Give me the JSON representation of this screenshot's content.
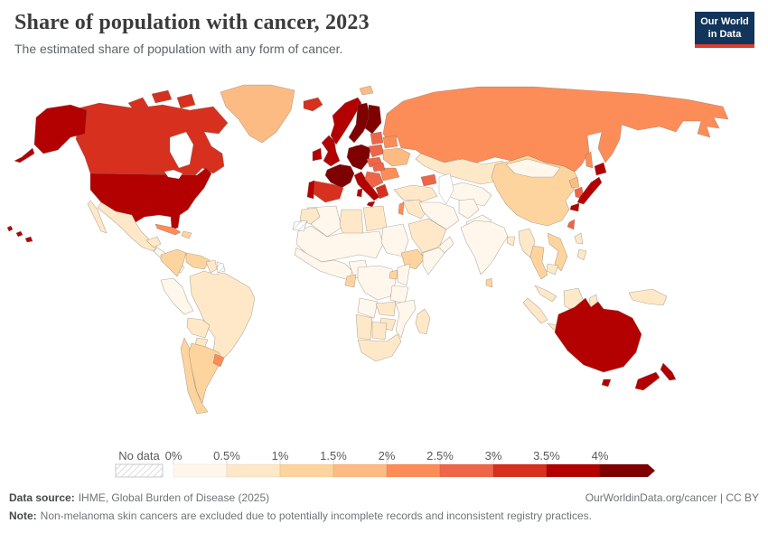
{
  "header": {
    "title": "Share of population with cancer, 2023",
    "subtitle": "The estimated share of population with any form of cancer.",
    "logo_line1": "Our World",
    "logo_line2": "in Data"
  },
  "footer": {
    "source_label": "Data source:",
    "source_text": "IHME, Global Burden of Disease (2025)",
    "credit": "OurWorldinData.org/cancer | CC BY",
    "note_label": "Note:",
    "note_text": "Non-melanoma skin cancers are excluded due to potentially incomplete records and inconsistent registry practices."
  },
  "colors": {
    "logo_bg": "#12355b",
    "logo_accent": "#dc3c2e",
    "country_border": "rgba(110,100,90,0.5)",
    "no_data_hatch": "#cfcfcf",
    "legend_text": "#5b5b5b",
    "tick": "#d9d9d9"
  },
  "chart_data": {
    "type": "choropleth_map",
    "title": "Share of population with cancer, 2023",
    "year": "2023",
    "metric": "Estimated share of population with any form of cancer",
    "unit": "%",
    "legend": {
      "no_data_label": "No data",
      "tick_labels": [
        "0%",
        "0.5%",
        "1%",
        "1.5%",
        "2%",
        "2.5%",
        "3%",
        "3.5%",
        "4%"
      ],
      "bins": [
        {
          "label": "0-0.5%",
          "color": "#fff7ec"
        },
        {
          "label": "0.5-1%",
          "color": "#fee8c8"
        },
        {
          "label": "1-1.5%",
          "color": "#fdd49e"
        },
        {
          "label": "1.5-2%",
          "color": "#fdbb84"
        },
        {
          "label": "2-2.5%",
          "color": "#fc8d59"
        },
        {
          "label": "2.5-3%",
          "color": "#ef6548"
        },
        {
          "label": "3-3.5%",
          "color": "#d7301f"
        },
        {
          "label": "3.5-4%",
          "color": "#b30000"
        },
        {
          "label": "4%+",
          "color": "#7f0000",
          "arrow": true
        }
      ]
    },
    "regions": [
      {
        "id": "russia",
        "name": "Russia",
        "bin": "2-2.5%"
      },
      {
        "id": "canada",
        "name": "Canada",
        "bin": "3-3.5%"
      },
      {
        "id": "usa",
        "name": "United States",
        "bin": "3.5-4%"
      },
      {
        "id": "greenland",
        "name": "Greenland",
        "bin": "1.5-2%"
      },
      {
        "id": "mexico",
        "name": "Mexico",
        "bin": "0.5-1%"
      },
      {
        "id": "central_america",
        "name": "Central America",
        "bin": "0-0.5%"
      },
      {
        "id": "cuba",
        "name": "Cuba",
        "bin": "2-2.5%"
      },
      {
        "id": "hispaniola",
        "name": "Dominican Republic & Haiti",
        "bin": "1-1.5%"
      },
      {
        "id": "colombia",
        "name": "Colombia",
        "bin": "1-1.5%"
      },
      {
        "id": "venezuela",
        "name": "Venezuela",
        "bin": "1-1.5%"
      },
      {
        "id": "guyana_suriname",
        "name": "Guyana & Suriname",
        "bin": "0.5-1%"
      },
      {
        "id": "french_guiana",
        "name": "French Guiana",
        "bin": "No data"
      },
      {
        "id": "brazil",
        "name": "Brazil",
        "bin": "0.5-1%"
      },
      {
        "id": "peru",
        "name": "Peru",
        "bin": "0-0.5%"
      },
      {
        "id": "bolivia",
        "name": "Bolivia",
        "bin": "0.5-1%"
      },
      {
        "id": "paraguay",
        "name": "Paraguay",
        "bin": "0.5-1%"
      },
      {
        "id": "chile",
        "name": "Chile",
        "bin": "1-1.5%"
      },
      {
        "id": "argentina",
        "name": "Argentina",
        "bin": "1-1.5%"
      },
      {
        "id": "uruguay",
        "name": "Uruguay",
        "bin": "2-2.5%"
      },
      {
        "id": "iceland",
        "name": "Iceland",
        "bin": "3-3.5%"
      },
      {
        "id": "norway",
        "name": "Norway",
        "bin": "3.5-4%"
      },
      {
        "id": "sweden",
        "name": "Sweden",
        "bin": "4%+"
      },
      {
        "id": "finland",
        "name": "Finland",
        "bin": "4%+"
      },
      {
        "id": "denmark",
        "name": "Denmark",
        "bin": "4%+"
      },
      {
        "id": "uk",
        "name": "United Kingdom",
        "bin": "3.5-4%"
      },
      {
        "id": "ireland",
        "name": "Ireland",
        "bin": "3.5-4%"
      },
      {
        "id": "germany_central",
        "name": "Germany & Central Europe",
        "bin": "4%+"
      },
      {
        "id": "france",
        "name": "France",
        "bin": "4%+"
      },
      {
        "id": "spain",
        "name": "Spain",
        "bin": "3-3.5%"
      },
      {
        "id": "portugal",
        "name": "Portugal",
        "bin": "3.5-4%"
      },
      {
        "id": "italy",
        "name": "Italy",
        "bin": "3.5-4%"
      },
      {
        "id": "poland",
        "name": "Poland",
        "bin": "2.5-3%"
      },
      {
        "id": "czech_slovakia",
        "name": "Czechia & Slovakia",
        "bin": "2.5-3%"
      },
      {
        "id": "baltics",
        "name": "Baltic states",
        "bin": "2.5-3%"
      },
      {
        "id": "belarus",
        "name": "Belarus",
        "bin": "2-2.5%"
      },
      {
        "id": "ukraine",
        "name": "Ukraine",
        "bin": "1.5-2%"
      },
      {
        "id": "romania_bulgaria",
        "name": "Romania & Bulgaria",
        "bin": "2-2.5%"
      },
      {
        "id": "hungary",
        "name": "Hungary",
        "bin": "2.5-3%"
      },
      {
        "id": "balkans",
        "name": "Balkans",
        "bin": "2.5-3%"
      },
      {
        "id": "greece",
        "name": "Greece",
        "bin": "3-3.5%"
      },
      {
        "id": "svalbard",
        "name": "Svalbard",
        "bin": "1.5-2%"
      },
      {
        "id": "kazakhstan",
        "name": "Kazakhstan",
        "bin": "0.5-1%"
      },
      {
        "id": "central_asia",
        "name": "Central Asia",
        "bin": "0-0.5%"
      },
      {
        "id": "caucasus",
        "name": "Caucasus",
        "bin": "2.5-3%"
      },
      {
        "id": "turkey",
        "name": "Turkey",
        "bin": "0.5-1%"
      },
      {
        "id": "syria_iraq",
        "name": "Syria & Iraq",
        "bin": "0.5-1%"
      },
      {
        "id": "israel_lebanon",
        "name": "Israel & Lebanon",
        "bin": "2-2.5%"
      },
      {
        "id": "iran",
        "name": "Iran",
        "bin": "0-0.5%"
      },
      {
        "id": "saudi_arabia",
        "name": "Saudi Arabia",
        "bin": "0.5-1%"
      },
      {
        "id": "yemen_oman",
        "name": "Yemen & Oman",
        "bin": "0-0.5%"
      },
      {
        "id": "afghanistan",
        "name": "Afghanistan",
        "bin": "0-0.5%"
      },
      {
        "id": "pakistan",
        "name": "Pakistan",
        "bin": "0-0.5%"
      },
      {
        "id": "india",
        "name": "India",
        "bin": "0-0.5%"
      },
      {
        "id": "sri_lanka",
        "name": "Sri Lanka",
        "bin": "1-1.5%"
      },
      {
        "id": "bangladesh",
        "name": "Bangladesh",
        "bin": "0.5-1%"
      },
      {
        "id": "china",
        "name": "China",
        "bin": "1-1.5%"
      },
      {
        "id": "mongolia",
        "name": "Mongolia",
        "bin": "0-0.5%"
      },
      {
        "id": "north_korea",
        "name": "North Korea",
        "bin": "1.5-2%"
      },
      {
        "id": "south_korea",
        "name": "South Korea",
        "bin": "2.5-3%"
      },
      {
        "id": "japan",
        "name": "Japan",
        "bin": "3.5-4%"
      },
      {
        "id": "taiwan",
        "name": "Taiwan",
        "bin": "2.5-3%"
      },
      {
        "id": "myanmar",
        "name": "Myanmar",
        "bin": "0.5-1%"
      },
      {
        "id": "thailand",
        "name": "Thailand",
        "bin": "1-1.5%"
      },
      {
        "id": "vietnam_laos",
        "name": "Vietnam & Laos",
        "bin": "1-1.5%"
      },
      {
        "id": "cambodia",
        "name": "Cambodia",
        "bin": "0.5-1%"
      },
      {
        "id": "malaysia",
        "name": "Malaysia",
        "bin": "0.5-1%"
      },
      {
        "id": "philippines",
        "name": "Philippines",
        "bin": "0.5-1%"
      },
      {
        "id": "indonesia",
        "name": "Indonesia",
        "bin": "0.5-1%"
      },
      {
        "id": "new_guinea",
        "name": "Papua New Guinea",
        "bin": "0.5-1%"
      },
      {
        "id": "algeria",
        "name": "Algeria",
        "bin": "0-0.5%"
      },
      {
        "id": "libya",
        "name": "Libya",
        "bin": "0.5-1%"
      },
      {
        "id": "egypt",
        "name": "Egypt",
        "bin": "0.5-1%"
      },
      {
        "id": "sahel",
        "name": "Sahel (Mauritania-Chad)",
        "bin": "0-0.5%"
      },
      {
        "id": "sudan",
        "name": "Sudan",
        "bin": "0-0.5%"
      },
      {
        "id": "west_africa",
        "name": "West Africa",
        "bin": "0-0.5%"
      },
      {
        "id": "nigeria",
        "name": "Nigeria",
        "bin": "0-0.5%"
      },
      {
        "id": "morocco",
        "name": "Morocco",
        "bin": "0.5-1%"
      },
      {
        "id": "western_sahara",
        "name": "Western Sahara",
        "bin": "No data"
      },
      {
        "id": "ethiopia",
        "name": "Ethiopia",
        "bin": "1-1.5%"
      },
      {
        "id": "somalia",
        "name": "Somalia",
        "bin": "0-0.5%"
      },
      {
        "id": "central_africa",
        "name": "Central Africa & DR Congo",
        "bin": "0-0.5%"
      },
      {
        "id": "gabon",
        "name": "Gabon",
        "bin": "1-1.5%"
      },
      {
        "id": "uganda",
        "name": "Uganda",
        "bin": "1-1.5%"
      },
      {
        "id": "kenya",
        "name": "Kenya",
        "bin": "0-0.5%"
      },
      {
        "id": "tanzania",
        "name": "Tanzania",
        "bin": "0-0.5%"
      },
      {
        "id": "angola",
        "name": "Angola",
        "bin": "0-0.5%"
      },
      {
        "id": "zambia",
        "name": "Zambia",
        "bin": "0.5-1%"
      },
      {
        "id": "mozambique",
        "name": "Mozambique",
        "bin": "0-0.5%"
      },
      {
        "id": "zimbabwe",
        "name": "Zimbabwe",
        "bin": "0.5-1%"
      },
      {
        "id": "namibia",
        "name": "Namibia",
        "bin": "0.5-1%"
      },
      {
        "id": "botswana",
        "name": "Botswana",
        "bin": "0.5-1%"
      },
      {
        "id": "south_africa",
        "name": "South Africa",
        "bin": "0.5-1%"
      },
      {
        "id": "madagascar",
        "name": "Madagascar",
        "bin": "0.5-1%"
      },
      {
        "id": "australia",
        "name": "Australia",
        "bin": "3.5-4%"
      },
      {
        "id": "new_zealand",
        "name": "New Zealand",
        "bin": "3.5-4%"
      }
    ]
  }
}
